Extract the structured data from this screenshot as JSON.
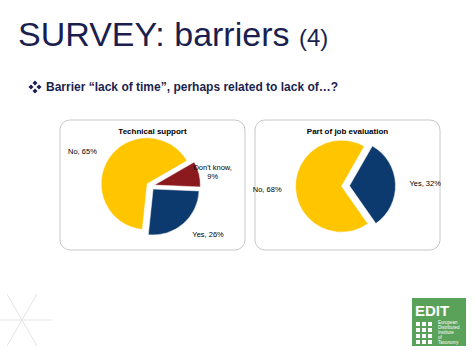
{
  "slide": {
    "title": "SURVEY: barriers",
    "title_suffix": "(4)",
    "bullet": "Barrier “lack of time”, perhaps related to lack of…?"
  },
  "logo": {
    "name": "EDIT",
    "subtitle": "European Distributed Institute of Taxonomy"
  },
  "chart_data": [
    {
      "type": "pie",
      "title": "Technical support",
      "categories": [
        "No",
        "Don't know",
        "Yes"
      ],
      "values": [
        65,
        9,
        26
      ],
      "value_labels": [
        "No, 65%",
        "Don't know, 9%",
        "Yes, 26%"
      ],
      "colors": [
        "#ffc600",
        "#8b1a1f",
        "#0d3a6e"
      ],
      "data_labels": true
    },
    {
      "type": "pie",
      "title": "Part of job evaluation",
      "categories": [
        "No",
        "Yes"
      ],
      "values": [
        68,
        32
      ],
      "value_labels": [
        "No, 68%",
        "Yes, 32%"
      ],
      "colors": [
        "#ffc600",
        "#0d3a6e"
      ],
      "data_labels": true
    }
  ]
}
